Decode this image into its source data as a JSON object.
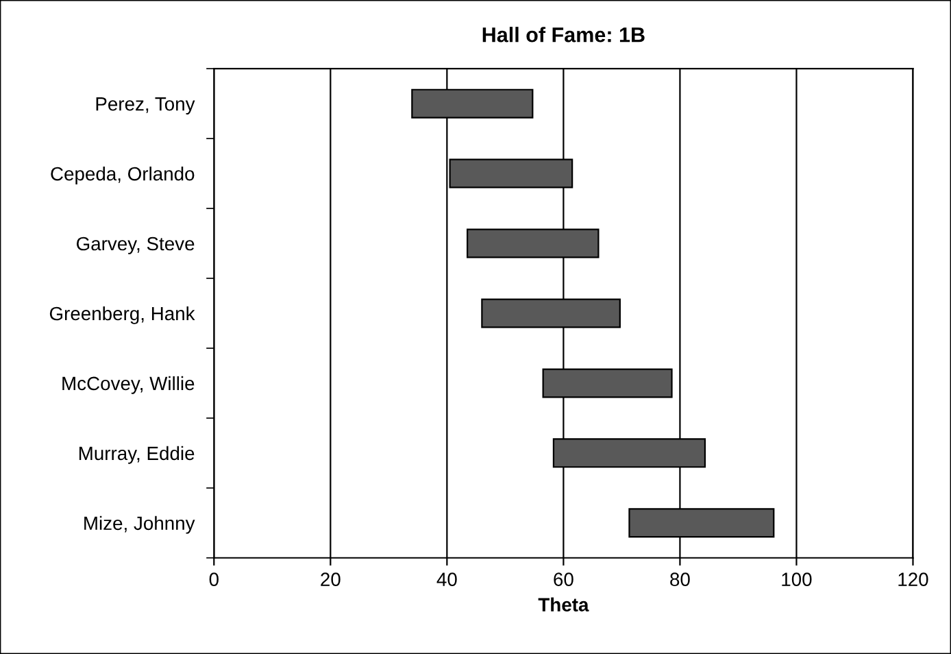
{
  "chart_data": {
    "type": "bar",
    "orientation": "horizontal",
    "title": "Hall of Fame: 1B",
    "xlabel": "Theta",
    "categories": [
      "Perez, Tony",
      "Cepeda, Orlando",
      "Garvey, Steve",
      "Greenberg, Hank",
      "McCovey, Willie",
      "Murray, Eddie",
      "Mize, Johnny"
    ],
    "base": [
      34,
      40.5,
      43.5,
      46,
      56.5,
      58.3,
      71.3
    ],
    "values": [
      20.7,
      21,
      22.5,
      23.7,
      22.1,
      26,
      24.8
    ],
    "color": "#595959",
    "xlim": [
      0,
      120
    ],
    "xticks": [
      0,
      20,
      40,
      60,
      80,
      100,
      120
    ],
    "grid": "x"
  }
}
